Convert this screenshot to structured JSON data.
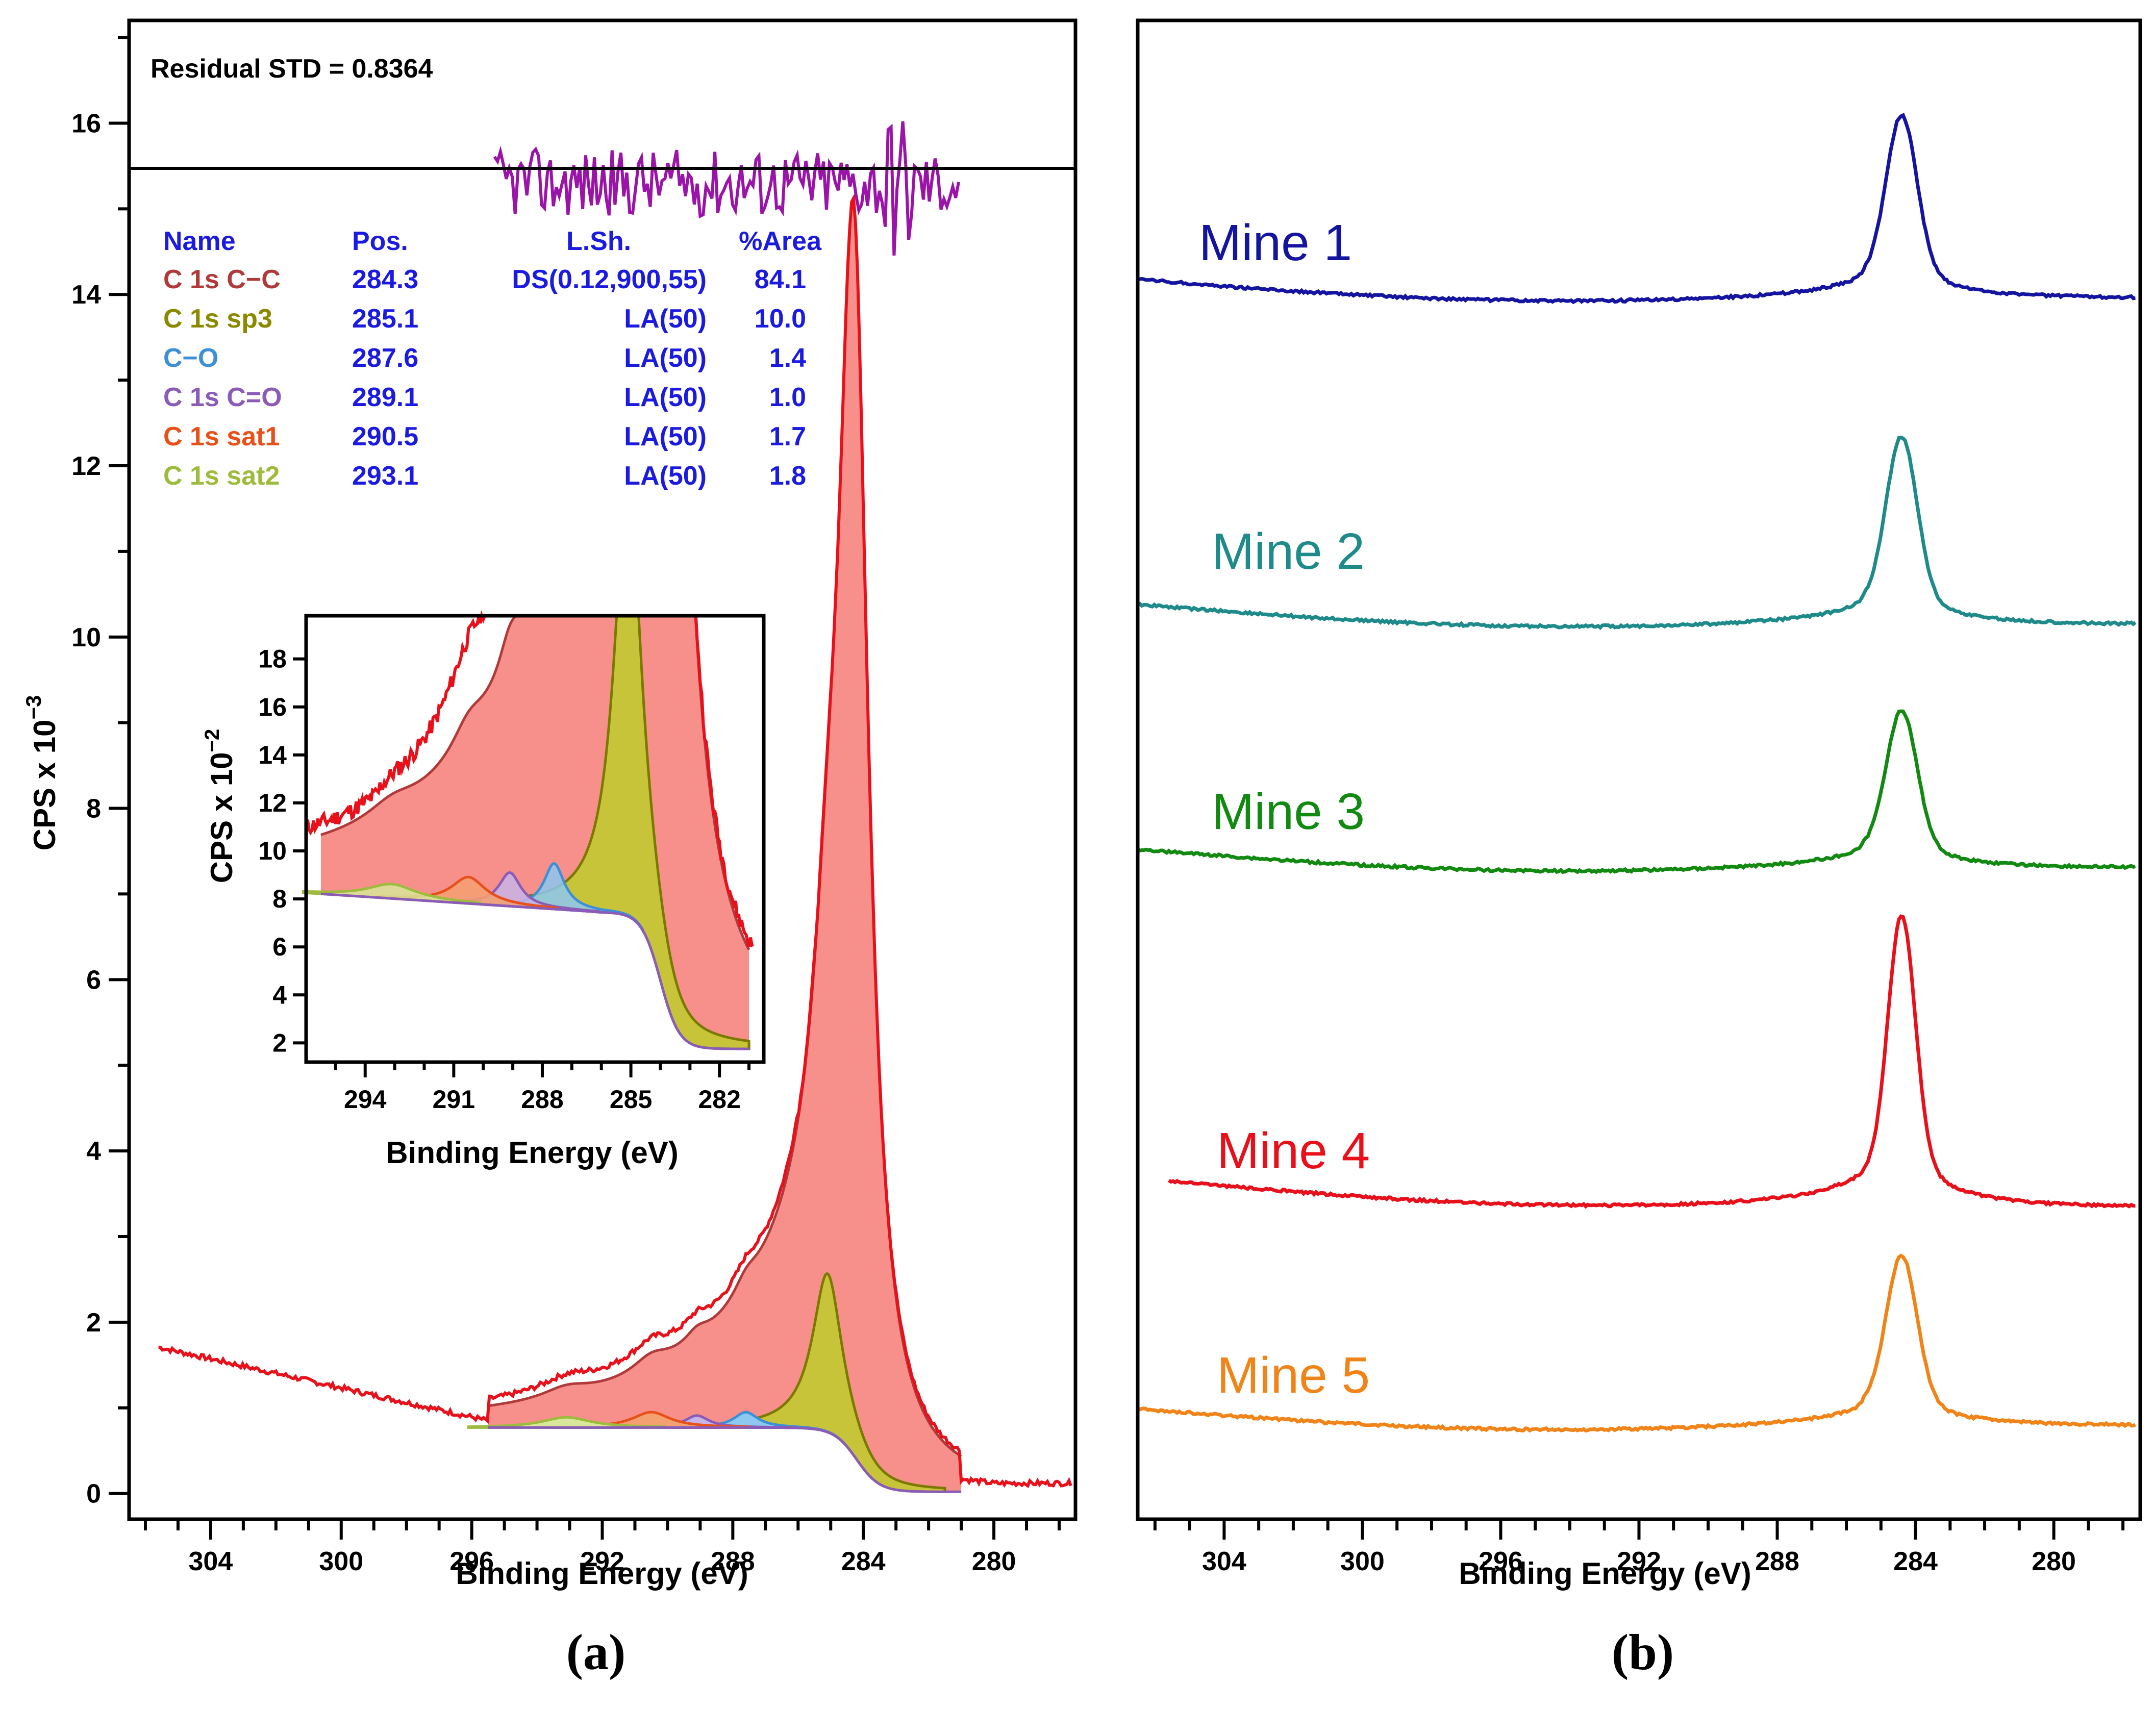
{
  "chart_data": [
    {
      "panel": "(a)",
      "type": "line",
      "title": "",
      "xlabel": "Binding Energy (eV)",
      "ylabel": "CPS x 10",
      "ylabel_exponent": "−3",
      "xlim": [
        306.5,
        277.5
      ],
      "ylim": [
        -0.3,
        17.2
      ],
      "x_ticks": [
        304,
        300,
        296,
        292,
        288,
        284,
        280
      ],
      "y_ticks": [
        0,
        2,
        4,
        6,
        8,
        10,
        12,
        14,
        16
      ],
      "residual_label": "Residual STD = 0.8364",
      "residual_baseline": 15.3,
      "table": {
        "headers": [
          "Name",
          "Pos.",
          "L.Sh.",
          "%Area"
        ],
        "rows": [
          {
            "name": "C 1s C−C",
            "pos": "284.3",
            "lsh": "DS(0.12,900,55)",
            "area": "84.1",
            "color": "#b03a3a"
          },
          {
            "name": "C 1s sp3",
            "pos": "285.1",
            "lsh": "LA(50)",
            "area": "10.0",
            "color": "#8a8a00"
          },
          {
            "name": "C−O",
            "pos": "287.6",
            "lsh": "LA(50)",
            "area": "1.4",
            "color": "#3d8fd6"
          },
          {
            "name": "C 1s C=O",
            "pos": "289.1",
            "lsh": "LA(50)",
            "area": "1.0",
            "color": "#8a5cb8"
          },
          {
            "name": "C 1s sat1",
            "pos": "290.5",
            "lsh": "LA(50)",
            "area": "1.7",
            "color": "#e8501a"
          },
          {
            "name": "C 1s sat2",
            "pos": "293.1",
            "lsh": "LA(50)",
            "area": "1.8",
            "color": "#9dbb3c"
          }
        ]
      },
      "envelope_peak_ccps": 14.8,
      "sp3_peak_ccps": 2.6,
      "background_start": 1.7,
      "colors": {
        "spectrum": "#e8101a",
        "residual": "#9b14a8",
        "cc_fill": "#f7908a",
        "sp3_fill": "#c8c43a",
        "co_fill": "#8cc8f0",
        "table_blue": "#1a1ae0"
      },
      "inset": {
        "xlabel": "Binding Energy (eV)",
        "ylabel": "CPS x 10",
        "ylabel_exponent": "−2",
        "xlim": [
          296,
          280.5
        ],
        "ylim": [
          1.2,
          19.8
        ],
        "x_ticks": [
          294,
          291,
          288,
          285,
          282
        ],
        "y_ticks": [
          2,
          4,
          6,
          8,
          10,
          12,
          14,
          16,
          18
        ]
      }
    },
    {
      "panel": "(b)",
      "type": "line",
      "title": "",
      "xlabel": "Binding Energy (eV)",
      "xlim": [
        306.5,
        277.5
      ],
      "x_ticks": [
        304,
        300,
        296,
        292,
        288,
        284,
        280
      ],
      "series": [
        {
          "name": "Mine 1",
          "color": "#1414a0",
          "peak_ev": 284.4
        },
        {
          "name": "Mine 2",
          "color": "#1e8a8a",
          "peak_ev": 284.4
        },
        {
          "name": "Mine 3",
          "color": "#128a12",
          "peak_ev": 284.4
        },
        {
          "name": "Mine 4",
          "color": "#e8101a",
          "peak_ev": 284.4
        },
        {
          "name": "Mine 5",
          "color": "#f08418",
          "peak_ev": 284.4
        }
      ]
    }
  ]
}
